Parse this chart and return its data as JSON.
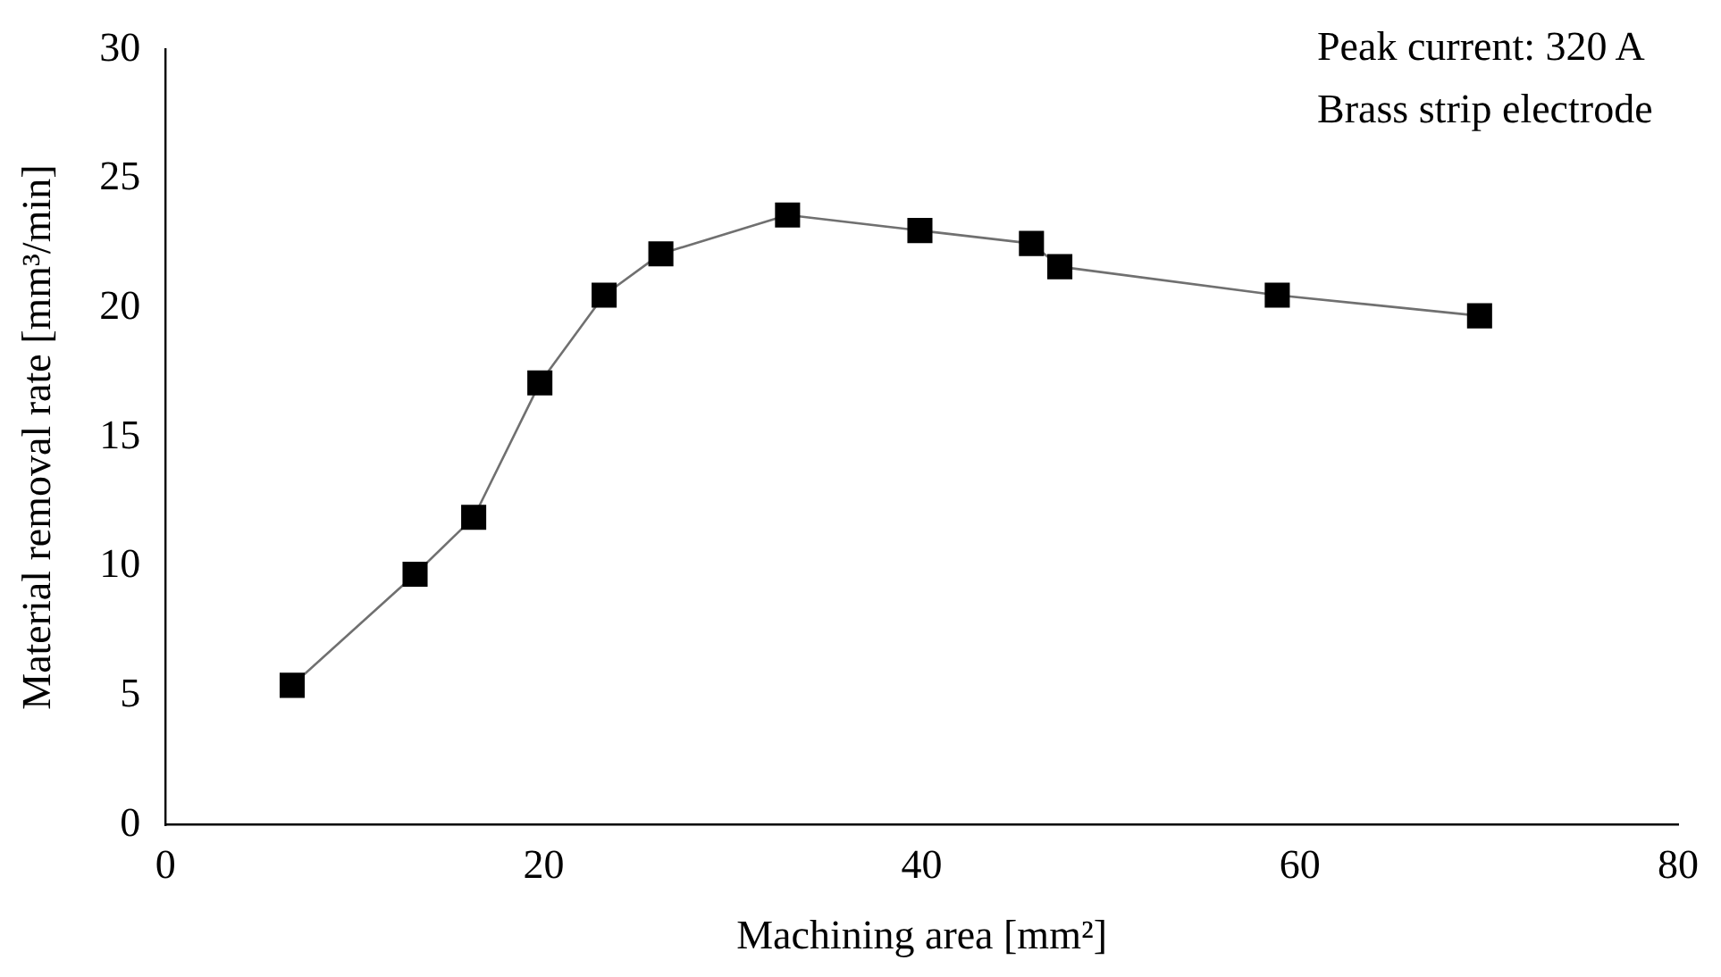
{
  "chart_data": {
    "type": "line",
    "xlabel": "Machining area [mm²]",
    "ylabel": "Material removal rate [mm³/min]",
    "annotations": [
      "Peak current: 320 A",
      "Brass strip electrode"
    ],
    "x": [
      6.7,
      13.2,
      16.3,
      19.8,
      23.2,
      26.2,
      32.9,
      39.9,
      45.8,
      47.3,
      58.8,
      69.5
    ],
    "series": [
      {
        "color": "#000000",
        "values": [
          5.4,
          9.7,
          11.9,
          17.1,
          20.5,
          22.1,
          23.6,
          23.0,
          22.5,
          21.6,
          20.5,
          19.7
        ]
      }
    ],
    "xlim": [
      0,
      80
    ],
    "xticks": [
      0,
      20,
      40,
      60,
      80
    ],
    "ylim": [
      0,
      30
    ],
    "yticks": [
      0,
      5,
      10,
      15,
      20,
      25,
      30
    ],
    "grid": false,
    "legend": false,
    "marker": "square",
    "line_style": "solid"
  }
}
